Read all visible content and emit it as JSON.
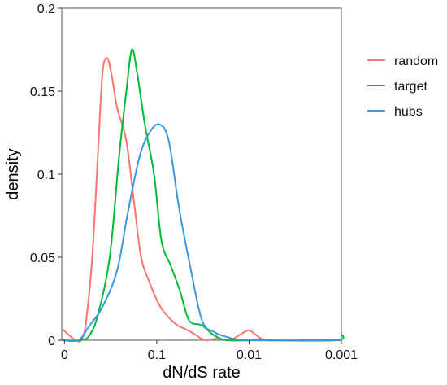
{
  "chart_data": {
    "type": "line",
    "title": "",
    "xlabel": "dN/dS rate",
    "ylabel": "density",
    "x_ticks": [
      {
        "value": 0,
        "label": "0"
      },
      {
        "value": 1,
        "label": "0.1"
      },
      {
        "value": 2,
        "label": "0.01"
      },
      {
        "value": 3,
        "label": "0.001"
      }
    ],
    "xlim": [
      -0.03,
      3
    ],
    "y_ticks": [
      {
        "value": 0,
        "label": "0"
      },
      {
        "value": 0.05,
        "label": "0.05"
      },
      {
        "value": 0.1,
        "label": "0.1"
      },
      {
        "value": 0.15,
        "label": "0.15"
      },
      {
        "value": 0.2,
        "label": "0.2"
      }
    ],
    "ylim": [
      0,
      0.2
    ],
    "grid": false,
    "legend_position": "right-top",
    "series": [
      {
        "name": "random",
        "color": "#f8766d",
        "points": [
          [
            -0.03,
            0.007
          ],
          [
            0.05,
            0.003
          ],
          [
            0.12,
            0.0
          ],
          [
            0.18,
            0.0
          ],
          [
            0.23,
            0.01
          ],
          [
            0.3,
            0.05
          ],
          [
            0.36,
            0.11
          ],
          [
            0.41,
            0.16
          ],
          [
            0.46,
            0.17
          ],
          [
            0.51,
            0.16
          ],
          [
            0.57,
            0.14
          ],
          [
            0.67,
            0.12
          ],
          [
            0.76,
            0.08
          ],
          [
            0.83,
            0.05
          ],
          [
            0.92,
            0.035
          ],
          [
            1.04,
            0.02
          ],
          [
            1.2,
            0.01
          ],
          [
            1.3,
            0.007
          ],
          [
            1.4,
            0.004
          ],
          [
            1.52,
            0.0
          ],
          [
            1.66,
            0.001
          ],
          [
            1.79,
            0.0
          ],
          [
            1.92,
            0.004
          ],
          [
            2.0,
            0.006
          ],
          [
            2.08,
            0.003
          ],
          [
            2.2,
            0.0
          ],
          [
            2.6,
            0.0
          ],
          [
            3.0,
            0.0
          ]
        ]
      },
      {
        "name": "target",
        "color": "#00ba38",
        "points": [
          [
            -0.03,
            0.0
          ],
          [
            0.18,
            0.0
          ],
          [
            0.27,
            0.003
          ],
          [
            0.36,
            0.015
          ],
          [
            0.49,
            0.05
          ],
          [
            0.59,
            0.11
          ],
          [
            0.67,
            0.15
          ],
          [
            0.73,
            0.175
          ],
          [
            0.79,
            0.16
          ],
          [
            0.87,
            0.13
          ],
          [
            0.97,
            0.1
          ],
          [
            1.05,
            0.06
          ],
          [
            1.15,
            0.045
          ],
          [
            1.25,
            0.03
          ],
          [
            1.35,
            0.012
          ],
          [
            1.49,
            0.009
          ],
          [
            1.62,
            0.003
          ],
          [
            1.77,
            0.0
          ],
          [
            2.1,
            0.0
          ],
          [
            2.2,
            0.0
          ],
          [
            2.95,
            0.0
          ],
          [
            3.0,
            0.004
          ]
        ]
      },
      {
        "name": "hubs",
        "color": "#3a98e0",
        "points": [
          [
            -0.03,
            0.0
          ],
          [
            0.15,
            0.0
          ],
          [
            0.26,
            0.008
          ],
          [
            0.41,
            0.02
          ],
          [
            0.57,
            0.042
          ],
          [
            0.68,
            0.075
          ],
          [
            0.81,
            0.11
          ],
          [
            0.92,
            0.125
          ],
          [
            1.03,
            0.13
          ],
          [
            1.13,
            0.12
          ],
          [
            1.24,
            0.08
          ],
          [
            1.36,
            0.045
          ],
          [
            1.49,
            0.012
          ],
          [
            1.62,
            0.005
          ],
          [
            1.76,
            0.002
          ],
          [
            2.0,
            0.0
          ],
          [
            3.0,
            0.0
          ]
        ]
      }
    ]
  }
}
